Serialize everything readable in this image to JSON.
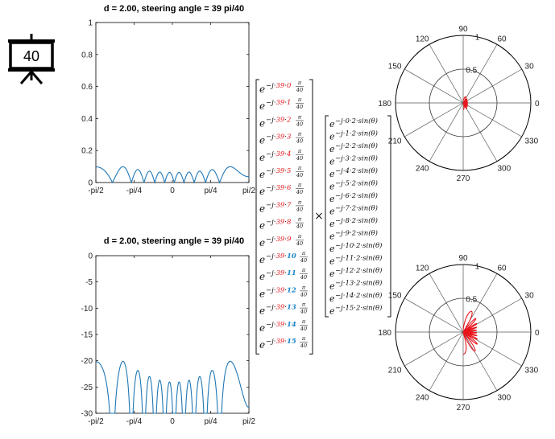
{
  "badge": {
    "label": "40"
  },
  "colors": {
    "line": "#1f77b4",
    "polar": "#e8161c",
    "red": "#e8161c",
    "blue": "#1c86c8",
    "grid": "#000000"
  },
  "chart_data": [
    {
      "type": "line",
      "title": "d = 2.00, steering angle  = 39 pi/40",
      "x_tick_labels": [
        "-pi/2",
        "-pi/4",
        "0",
        "pi/4",
        "pi/2"
      ],
      "x_tick_values": [
        -1.5708,
        -0.7854,
        0,
        0.7854,
        1.5708
      ],
      "y_tick_labels": [
        "0",
        "0.2",
        "0.4",
        "0.6",
        "0.8",
        "1"
      ],
      "y_tick_values": [
        0,
        0.2,
        0.4,
        0.6,
        0.8,
        1
      ],
      "xlim": [
        -1.5708,
        1.5708
      ],
      "ylim": [
        0,
        1
      ],
      "scale": "linear",
      "array": {
        "elements": 16,
        "d": 2.0,
        "phase_step": 3.0631
      }
    },
    {
      "type": "line",
      "title": "d = 2.00, steering angle  = 39 pi/40",
      "x_tick_labels": [
        "-pi/2",
        "-pi/4",
        "0",
        "pi/4",
        "pi/2"
      ],
      "x_tick_values": [
        -1.5708,
        -0.7854,
        0,
        0.7854,
        1.5708
      ],
      "y_tick_labels": [
        "0",
        "-5",
        "-10",
        "-15",
        "-20",
        "-25",
        "-30"
      ],
      "y_tick_values": [
        0,
        -5,
        -10,
        -15,
        -20,
        -25,
        -30
      ],
      "xlim": [
        -1.5708,
        1.5708
      ],
      "ylim": [
        -30,
        0
      ],
      "scale": "dB",
      "array": {
        "elements": 16,
        "d": 2.0,
        "phase_step": 3.0631
      }
    },
    {
      "type": "polar",
      "angle_labels": [
        "90",
        "60",
        "30",
        "0",
        "330",
        "300",
        "270",
        "240",
        "210",
        "180",
        "150",
        "120"
      ],
      "angle_values": [
        90,
        60,
        30,
        0,
        330,
        300,
        270,
        240,
        210,
        180,
        150,
        120
      ],
      "radial_labels": [
        "0.5",
        "1"
      ],
      "radial_values": [
        0.5,
        1
      ],
      "rlim": [
        0,
        1
      ],
      "scale": "linear"
    },
    {
      "type": "polar",
      "angle_labels": [
        "90",
        "60",
        "30",
        "0",
        "330",
        "300",
        "270",
        "240",
        "210",
        "180",
        "150",
        "120"
      ],
      "angle_values": [
        90,
        60,
        30,
        0,
        330,
        300,
        270,
        240,
        210,
        180,
        150,
        120
      ],
      "radial_labels": [
        "0.5",
        "1"
      ],
      "radial_values": [
        0.5,
        1
      ],
      "rlim": [
        0,
        1
      ],
      "scale": "dB-normalized",
      "db_floor": -30
    }
  ],
  "matrix_left": {
    "base": "e",
    "prefix": "−j·39·",
    "indices": [
      "0",
      "1",
      "2",
      "3",
      "4",
      "5",
      "6",
      "7",
      "8",
      "9",
      "10",
      "11",
      "12",
      "13",
      "14",
      "15"
    ],
    "frac_num": "π",
    "frac_den": "40"
  },
  "matrix_right": {
    "base": "e",
    "entries": [
      "−j·0·2·sin(θ)",
      "−j·1·2·sin(θ)",
      "−j·2·2·sin(θ)",
      "−j·3·2·sin(θ)",
      "−j·4·2·sin(θ)",
      "−j·5·2·sin(θ)",
      "−j·6·2·sin(θ)",
      "−j·7·2·sin(θ)",
      "−j·8·2·sin(θ)",
      "−j·9·2·sin(θ)",
      "−j·10·2·sin(θ)",
      "−j·11·2·sin(θ)",
      "−j·12·2·sin(θ)",
      "−j·13·2·sin(θ)",
      "−j·14·2·sin(θ)",
      "−j·15·2·sin(θ)"
    ]
  },
  "operator": "×"
}
